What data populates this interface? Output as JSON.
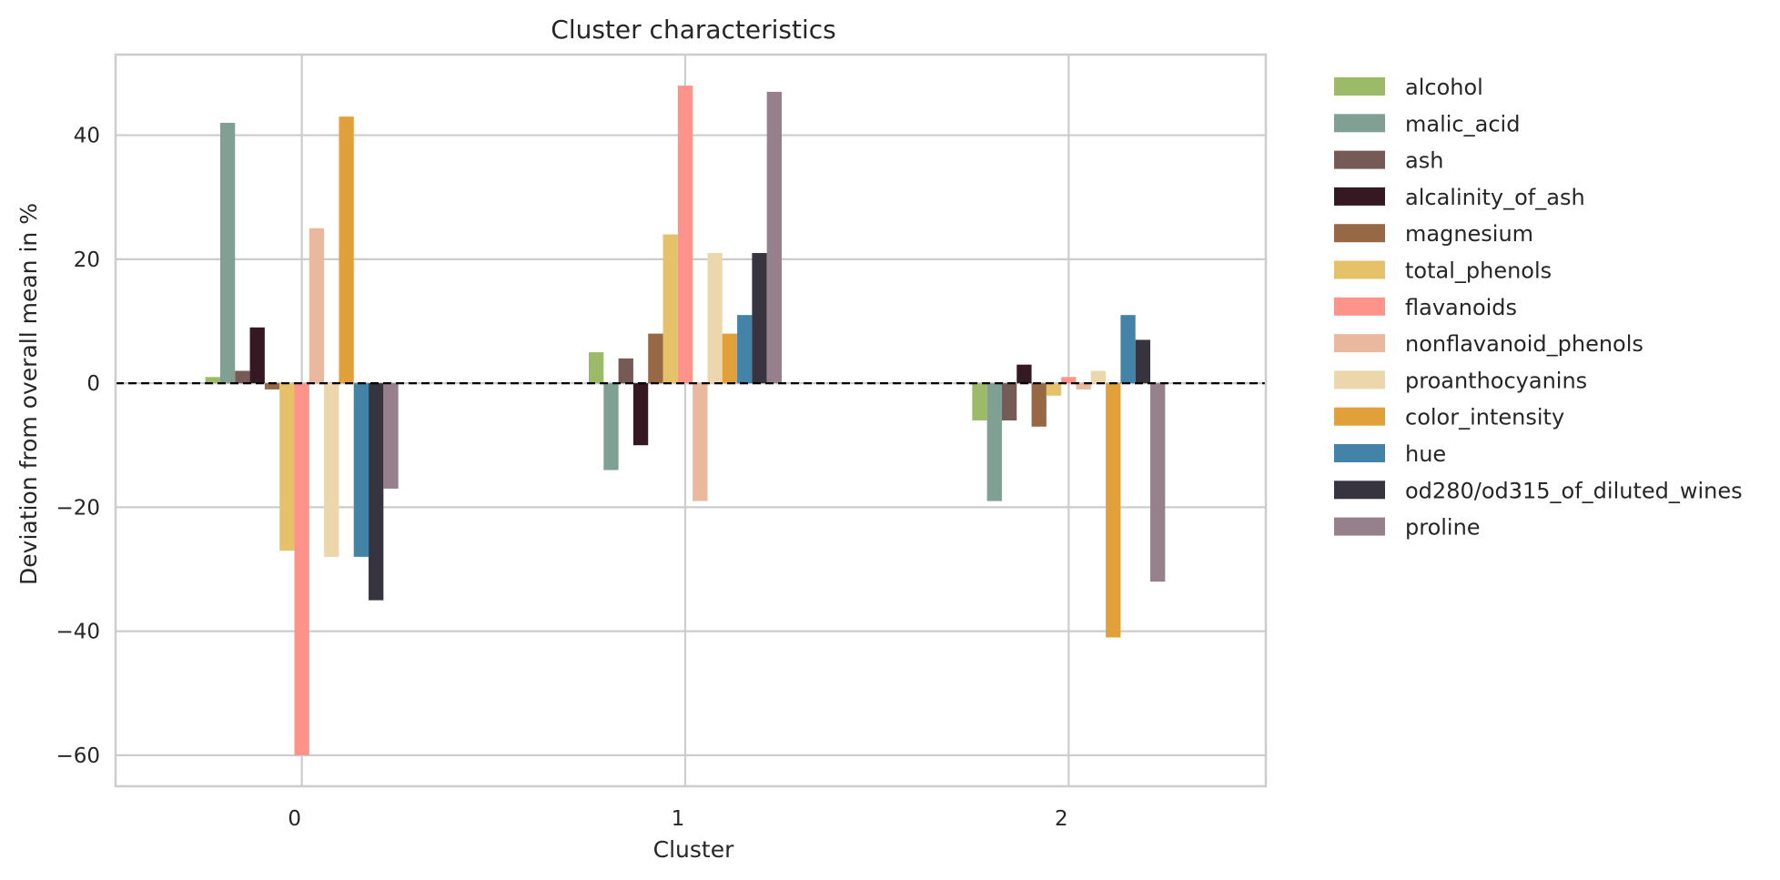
{
  "chart_data": {
    "type": "bar",
    "title": "Cluster characteristics",
    "xlabel": "Cluster",
    "ylabel": "Deviation from overall mean in %",
    "categories": [
      "0",
      "1",
      "2"
    ],
    "ylim": [
      -65,
      53
    ],
    "yticks": [
      -60,
      -40,
      -20,
      0,
      20,
      40
    ],
    "ytick_labels": [
      "−60",
      "−40",
      "−20",
      "0",
      "20",
      "40"
    ],
    "grid": true,
    "legend_position": "outside-right",
    "reference_line": 0,
    "series": [
      {
        "name": "alcohol",
        "color": "#9cbb68",
        "values": [
          1,
          5,
          -6
        ]
      },
      {
        "name": "malic_acid",
        "color": "#7fa093",
        "values": [
          42,
          -14,
          -19
        ]
      },
      {
        "name": "ash",
        "color": "#765a55",
        "values": [
          2,
          4,
          -6
        ]
      },
      {
        "name": "alcalinity_of_ash",
        "color": "#351922",
        "values": [
          9,
          -10,
          3
        ]
      },
      {
        "name": "magnesium",
        "color": "#976845",
        "values": [
          -1,
          8,
          -7
        ]
      },
      {
        "name": "total_phenols",
        "color": "#e5c26a",
        "values": [
          -27,
          24,
          -2
        ]
      },
      {
        "name": "flavanoids",
        "color": "#fe938b",
        "values": [
          -60,
          48,
          1
        ]
      },
      {
        "name": "nonflavanoid_phenols",
        "color": "#e9b89f",
        "values": [
          25,
          -19,
          -1
        ]
      },
      {
        "name": "proanthocyanins",
        "color": "#ecd6ac",
        "values": [
          -28,
          21,
          2
        ]
      },
      {
        "name": "color_intensity",
        "color": "#e1a03a",
        "values": [
          43,
          8,
          -41
        ]
      },
      {
        "name": "hue",
        "color": "#4483a8",
        "values": [
          -28,
          11,
          11
        ]
      },
      {
        "name": "od280/od315_of_diluted_wines",
        "color": "#37343f",
        "values": [
          -35,
          21,
          7
        ]
      },
      {
        "name": "proline",
        "color": "#96808c",
        "values": [
          -17,
          47,
          -32
        ]
      }
    ]
  }
}
